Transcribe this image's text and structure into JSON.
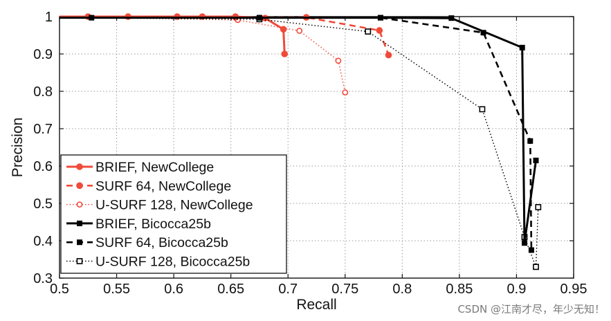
{
  "chart_data": {
    "type": "line",
    "title": "",
    "xlabel": "Recall",
    "ylabel": "Precision",
    "xlim": [
      0.5,
      0.95
    ],
    "ylim": [
      0.3,
      1.0
    ],
    "xticks": [
      "0.5",
      "0.55",
      "0.6",
      "0.65",
      "0.7",
      "0.75",
      "0.8",
      "0.85",
      "0.9",
      "0.95"
    ],
    "yticks": [
      "0.3",
      "0.4",
      "0.5",
      "0.6",
      "0.7",
      "0.8",
      "0.9",
      "1"
    ],
    "grid": true,
    "legend_position": "bottom-left",
    "series": [
      {
        "name": "BRIEF, NewCollege",
        "color": "#f04a3a",
        "line_style": "solid",
        "marker": "filled-circle",
        "x": [
          0.5,
          0.525,
          0.56,
          0.603,
          0.625,
          0.654,
          0.68,
          0.696,
          0.697
        ],
        "y": [
          1.0,
          1.0,
          1.0,
          1.0,
          1.0,
          1.0,
          0.996,
          0.966,
          0.9
        ]
      },
      {
        "name": "SURF 64, NewCollege",
        "color": "#f04a3a",
        "line_style": "dashed",
        "marker": "filled-circle",
        "x": [
          0.5,
          0.654,
          0.716,
          0.78,
          0.788
        ],
        "y": [
          1.0,
          0.998,
          0.998,
          0.963,
          0.897
        ]
      },
      {
        "name": "U-SURF 128, NewCollege",
        "color": "#f04a3a",
        "line_style": "dotted",
        "marker": "open-circle",
        "x": [
          0.5,
          0.656,
          0.71,
          0.744,
          0.75
        ],
        "y": [
          1.0,
          0.991,
          0.962,
          0.882,
          0.797
        ]
      },
      {
        "name": "BRIEF, Bicocca25b",
        "color": "#000000",
        "line_style": "solid",
        "marker": "filled-square",
        "x": [
          0.5,
          0.528,
          0.675,
          0.781,
          0.843,
          0.905,
          0.907,
          0.917
        ],
        "y": [
          0.997,
          0.997,
          0.997,
          0.997,
          0.996,
          0.917,
          0.394,
          0.615
        ]
      },
      {
        "name": "SURF 64, Bicocca25b",
        "color": "#000000",
        "line_style": "dashed",
        "marker": "filled-square",
        "x": [
          0.5,
          0.675,
          0.781,
          0.871,
          0.912,
          0.913
        ],
        "y": [
          0.997,
          0.997,
          0.997,
          0.957,
          0.667,
          0.375
        ]
      },
      {
        "name": "U-SURF 128, Bicocca25b",
        "color": "#000000",
        "line_style": "dotted",
        "marker": "open-square",
        "x": [
          0.5,
          0.675,
          0.77,
          0.87,
          0.907,
          0.917,
          0.919
        ],
        "y": [
          0.997,
          0.993,
          0.96,
          0.752,
          0.41,
          0.33,
          0.49
        ]
      }
    ]
  },
  "watermark": "CSDN @江南才尽，年少无知！"
}
